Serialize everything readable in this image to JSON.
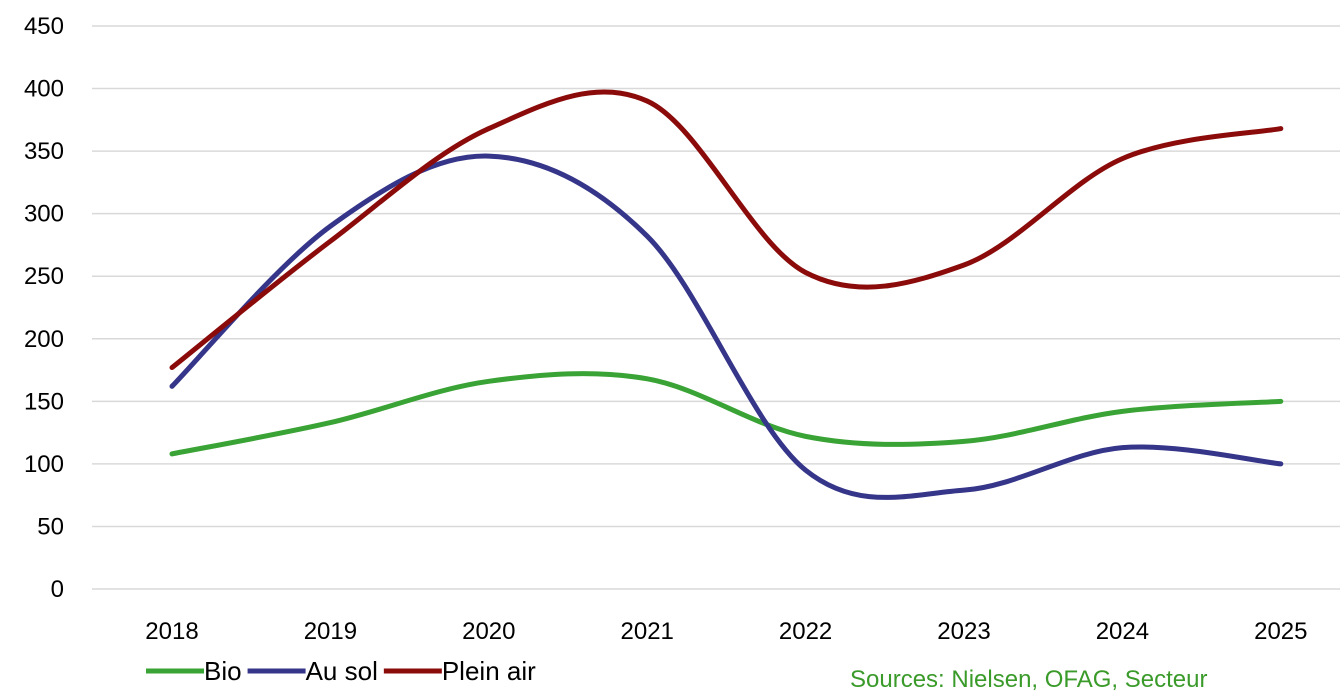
{
  "chart_data": {
    "type": "line",
    "x": [
      "2018",
      "2019",
      "2020",
      "2021",
      "2022",
      "2023",
      "2024",
      "2025"
    ],
    "series": [
      {
        "name": "Bio",
        "color": "#3aa335",
        "values": [
          108,
          133,
          166,
          168,
          122,
          118,
          142,
          150
        ]
      },
      {
        "name": "Au sol",
        "color": "#35358a",
        "values": [
          162,
          290,
          346,
          282,
          95,
          79,
          113,
          100
        ]
      },
      {
        "name": "Plein air",
        "color": "#8b0b0b",
        "values": [
          177,
          278,
          368,
          390,
          253,
          259,
          344,
          368
        ]
      }
    ],
    "ylim": [
      0,
      450
    ],
    "yticks": [
      0,
      50,
      100,
      150,
      200,
      250,
      300,
      350,
      400,
      450
    ],
    "grid": true,
    "legend_position": "bottom-left",
    "source": "Sources: Nielsen, OFAG, Secteur"
  }
}
